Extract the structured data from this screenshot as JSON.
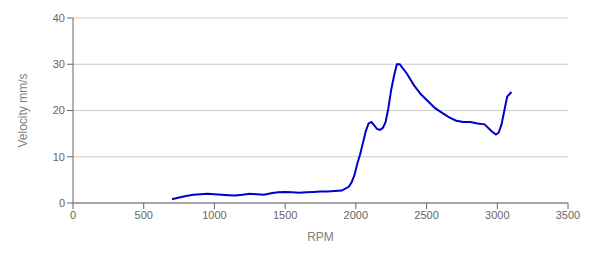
{
  "chart_data": {
    "type": "line",
    "xlabel": "RPM",
    "ylabel": "Velocity mm/s",
    "xlim": [
      0,
      3500
    ],
    "ylim": [
      0,
      40
    ],
    "xticks": [
      0,
      500,
      1000,
      1500,
      2000,
      2500,
      3000,
      3500
    ],
    "yticks": [
      0,
      10,
      20,
      30,
      40
    ],
    "color": "#0000CC",
    "grid": true,
    "x": [
      700,
      750,
      800,
      850,
      900,
      950,
      1000,
      1050,
      1100,
      1150,
      1200,
      1250,
      1300,
      1350,
      1400,
      1450,
      1500,
      1550,
      1600,
      1650,
      1700,
      1750,
      1800,
      1850,
      1900,
      1950,
      1970,
      1990,
      2010,
      2030,
      2050,
      2070,
      2090,
      2110,
      2130,
      2150,
      2170,
      2190,
      2210,
      2230,
      2250,
      2270,
      2290,
      2310,
      2360,
      2410,
      2460,
      2510,
      2560,
      2610,
      2660,
      2710,
      2760,
      2810,
      2860,
      2910,
      2960,
      2990,
      3010,
      3030,
      3050,
      3070,
      3100
    ],
    "values": [
      0.8,
      1.2,
      1.5,
      1.8,
      1.9,
      2.0,
      1.9,
      1.8,
      1.7,
      1.6,
      1.8,
      2.0,
      1.9,
      1.8,
      2.1,
      2.3,
      2.4,
      2.3,
      2.2,
      2.3,
      2.4,
      2.5,
      2.5,
      2.6,
      2.7,
      3.5,
      4.5,
      6.0,
      8.5,
      10.5,
      13.0,
      15.5,
      17.2,
      17.5,
      16.8,
      16.0,
      15.8,
      16.2,
      17.5,
      20.5,
      24.5,
      27.5,
      30.0,
      30.0,
      28.0,
      25.5,
      23.5,
      22.0,
      20.5,
      19.5,
      18.5,
      17.8,
      17.5,
      17.5,
      17.2,
      17.0,
      15.5,
      14.8,
      15.2,
      17.0,
      20.0,
      23.0,
      24.0
    ]
  }
}
